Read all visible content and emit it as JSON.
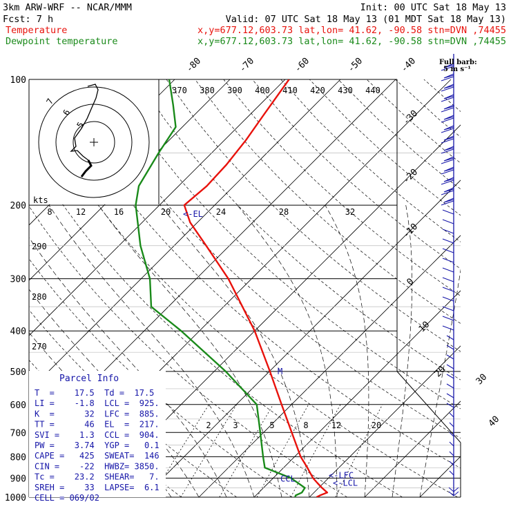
{
  "header": {
    "model": "3km ARW-WRF -- NCAR/MMM",
    "init": "Init: 00 UTC Sat 18 May 13",
    "fcst": "Fcst:    7 h",
    "valid": "Valid: 07 UTC Sat 18 May 13 (01 MDT Sat 18 May 13)",
    "temp_label": "Temperature",
    "temp_info": "x,y=677.12,603.73   lat,lon= 41.62, -90.58  stn=DVN ,74455",
    "dew_label": "Dewpoint temperature",
    "dew_info": "x,y=677.12,603.73   lat,lon= 41.62, -90.58  stn=DVN ,74455"
  },
  "colors": {
    "temperature": "#e8120c",
    "dewpoint": "#1a8a1a",
    "text_blue": "#1515a8",
    "wind": "#1515a8"
  },
  "chart_data": {
    "type": "line",
    "x_axis": "temperature (°C), skewed",
    "y_axis": "pressure (hPa), log scale",
    "pressure_ticks": [
      100,
      200,
      300,
      400,
      500,
      600,
      700,
      800,
      900,
      1000
    ],
    "temperature_ticks": [
      "-80",
      "-70",
      "-60",
      "-50",
      "-40",
      "-30",
      "-20",
      "-10",
      "0",
      "10",
      "20",
      "30",
      "40"
    ],
    "theta_ticks": [
      "370",
      "380",
      "390",
      "400",
      "410",
      "420",
      "430",
      "440"
    ],
    "mixing_ratio_ticks": [
      "2",
      "3",
      "5",
      "8",
      "12",
      "20"
    ],
    "theta_e_side_ticks": [
      "290",
      "280",
      "270"
    ],
    "series": [
      {
        "name": "Temperature",
        "color": "#e8120c",
        "points": [
          [
            1000,
            21.3
          ],
          [
            990,
            21.6
          ],
          [
            975,
            22.4
          ],
          [
            950,
            20.6
          ],
          [
            925,
            18.9
          ],
          [
            900,
            17.2
          ],
          [
            850,
            14.3
          ],
          [
            800,
            11.1
          ],
          [
            700,
            5.1
          ],
          [
            600,
            -1.8
          ],
          [
            500,
            -9.9
          ],
          [
            400,
            -20.0
          ],
          [
            300,
            -34.2
          ],
          [
            250,
            -44.2
          ],
          [
            220,
            -51.3
          ],
          [
            200,
            -55.5
          ],
          [
            180,
            -54.9
          ],
          [
            160,
            -55.2
          ],
          [
            140,
            -56.1
          ],
          [
            120,
            -57.6
          ],
          [
            100,
            -59.3
          ]
        ]
      },
      {
        "name": "Dewpoint temperature",
        "color": "#1a8a1a",
        "points": [
          [
            1000,
            17.4
          ],
          [
            990,
            17.2
          ],
          [
            975,
            17.8
          ],
          [
            950,
            17.5
          ],
          [
            925,
            15.4
          ],
          [
            900,
            13.2
          ],
          [
            850,
            6.6
          ],
          [
            800,
            4.3
          ],
          [
            700,
            -0.6
          ],
          [
            600,
            -6.3
          ],
          [
            500,
            -17.9
          ],
          [
            400,
            -33.3
          ],
          [
            350,
            -43.1
          ],
          [
            300,
            -48.4
          ],
          [
            250,
            -56.1
          ],
          [
            200,
            -64.3
          ],
          [
            180,
            -67.2
          ],
          [
            150,
            -69.6
          ],
          [
            130,
            -71.2
          ],
          [
            115,
            -75.7
          ],
          [
            100,
            -81.0
          ]
        ]
      }
    ],
    "markers": {
      "el": {
        "text": "<-EL",
        "p": 210
      },
      "lfc": {
        "text": "<-LFC",
        "p": 887
      },
      "lcl": {
        "text": "<-LCL",
        "p": 925
      },
      "ccl": {
        "text": "CCL",
        "p": 904
      },
      "m": {
        "text": "M",
        "p": 500
      }
    },
    "winds": {
      "legend": "Full barb:",
      "legend_unit": "5 m s⁻¹"
    },
    "hodograph": {
      "kts_label": "kts",
      "speed_ticks": [
        "8",
        "12",
        "16",
        "20",
        "24",
        "28",
        "32"
      ],
      "rings": [
        "5",
        "6",
        "7"
      ]
    }
  },
  "parcel_info": {
    "title": "Parcel Info",
    "rows": [
      "T  =    17.5  Td =  17.5",
      "LI =    -1.8  LCL =  925.",
      "K  =      32  LFC =  885.",
      "TT =      46  EL  =  217.",
      "SVI =    1.3  CCL =  904.",
      "PW =    3.74  YGP =   0.1",
      "CAPE =   425  SWEAT=  146",
      "CIN =    -22  HWBZ= 3850.",
      "Tc =    23.2  SHEAR=   7.",
      "SREH =    33  LAPSE=  6.1",
      "CELL = 069/02"
    ]
  }
}
